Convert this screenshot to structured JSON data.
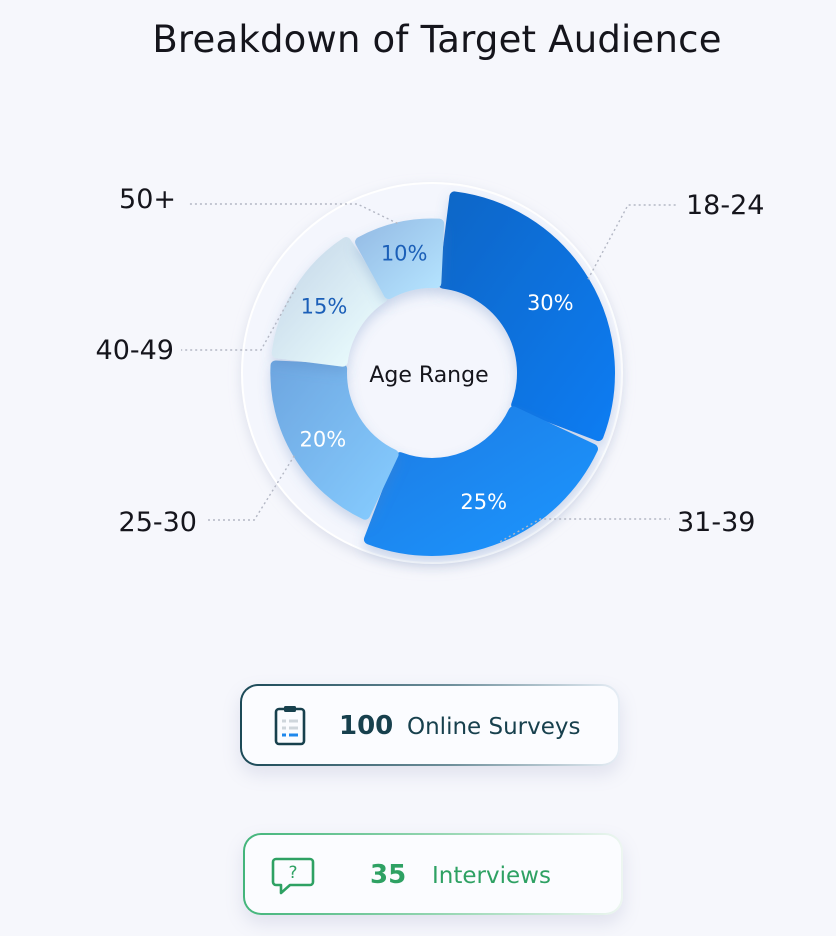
{
  "title": "Breakdown of Target Audience",
  "chart_data": {
    "type": "pie",
    "title": "Breakdown of Target Audience",
    "center_label": "Age Range",
    "slices": [
      {
        "label": "18-24",
        "value": 30,
        "value_label": "30%",
        "color": "#0f6fd8"
      },
      {
        "label": "31-39",
        "value": 25,
        "value_label": "25%",
        "color": "#1c86f7"
      },
      {
        "label": "25-30",
        "value": 20,
        "value_label": "20%",
        "color": "#78b6f5"
      },
      {
        "label": "40-49",
        "value": 15,
        "value_label": "15%",
        "color": "#d4e7fb"
      },
      {
        "label": "50+",
        "value": 10,
        "value_label": "10%",
        "color": "#a2ccf9"
      }
    ]
  },
  "stats": {
    "surveys": {
      "value": "100",
      "label": "Online Surveys",
      "icon": "clipboard-icon",
      "color": "#17404d"
    },
    "interviews": {
      "value": "35",
      "label": "Interviews",
      "icon": "question-chat-icon",
      "color": "#2ea163"
    }
  }
}
